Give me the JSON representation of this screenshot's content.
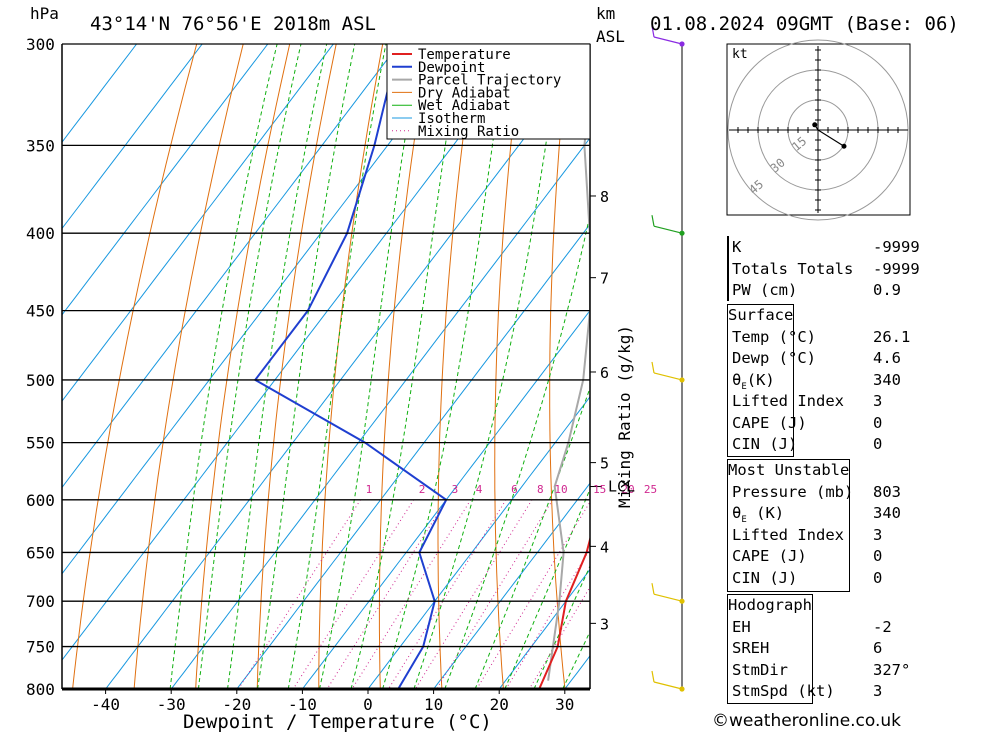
{
  "header": {
    "location": "43°14'N 76°56'E 2018m ASL",
    "datetime": "01.08.2024 09GMT (Base: 06)",
    "hpa_unit": "hPa",
    "km_unit": "km",
    "asl_unit": "ASL"
  },
  "chart_data": {
    "type": "line",
    "title": "43°14'N 76°56'E 2018m ASL",
    "xlabel": "Dewpoint / Temperature (°C)",
    "ylabel": "hPa",
    "right_axis_label": "Mixing Ratio (g/kg)",
    "xlim": [
      -47,
      34
    ],
    "ylim": [
      800,
      300
    ],
    "x_ticks": [
      -40,
      -30,
      -20,
      -10,
      0,
      10,
      20,
      30
    ],
    "pressure_levels": [
      300,
      350,
      400,
      450,
      500,
      550,
      600,
      650,
      700,
      750,
      800
    ],
    "km_ticks": [
      {
        "label": "8",
        "p": 378
      },
      {
        "label": "7",
        "p": 428
      },
      {
        "label": "6",
        "p": 494
      },
      {
        "label": "5",
        "p": 567
      },
      {
        "label": "4",
        "p": 644
      },
      {
        "label": "3",
        "p": 724
      }
    ],
    "lcl": {
      "label": "LCL",
      "p": 588
    },
    "mixing_ratio_labels": [
      "1",
      "2",
      "3",
      "4",
      "6",
      "8",
      "10",
      "15",
      "20",
      "25"
    ],
    "mixing_ratio_values": [
      1,
      2,
      3,
      4,
      6,
      8,
      10,
      15,
      20,
      25
    ],
    "legend": [
      "Temperature",
      "Dewpoint",
      "Parcel Trajectory",
      "Dry Adiabat",
      "Wet Adiabat",
      "Isotherm",
      "Mixing Ratio"
    ],
    "legend_position": "top-center",
    "colors": {
      "temperature": "#e02020",
      "dewpoint": "#1f3fd0",
      "parcel": "#a8a8a8",
      "dry_adiabat": "#e07010",
      "wet_adiabat": "#10b010",
      "isotherm": "#1898e0",
      "mixing_ratio": "#d02890"
    },
    "series": [
      {
        "name": "Temperature",
        "points": [
          [
            26.1,
            800
          ],
          [
            24,
            750
          ],
          [
            20,
            700
          ],
          [
            17.5,
            650
          ],
          [
            13.5,
            600
          ],
          [
            10.5,
            550
          ],
          [
            7,
            500
          ],
          [
            4,
            450
          ],
          [
            0.5,
            400
          ],
          [
            -2,
            380
          ],
          [
            -3,
            350
          ]
        ]
      },
      {
        "name": "Dewpoint",
        "points": [
          [
            4.6,
            800
          ],
          [
            3.5,
            750
          ],
          [
            0,
            700
          ],
          [
            -8,
            650
          ],
          [
            -10,
            600
          ],
          [
            -29,
            550
          ],
          [
            -53,
            500
          ],
          [
            -53,
            450
          ],
          [
            -56,
            400
          ],
          [
            -62,
            350
          ],
          [
            -70,
            300
          ]
        ]
      },
      {
        "name": "Parcel Trajectory",
        "points": [
          [
            26.5,
            790
          ],
          [
            19,
            700
          ],
          [
            14,
            650
          ],
          [
            5,
            588
          ],
          [
            2,
            550
          ],
          [
            -3,
            500
          ],
          [
            -10,
            450
          ],
          [
            -19,
            400
          ],
          [
            -30,
            350
          ],
          [
            -38,
            310
          ]
        ]
      }
    ],
    "wind_barbs": [
      {
        "p": 300,
        "color": "#8a2be2"
      },
      {
        "p": 400,
        "color": "#20a020"
      },
      {
        "p": 500,
        "color": "#e0c000"
      },
      {
        "p": 700,
        "color": "#e0c000"
      },
      {
        "p": 800,
        "color": "#e0c000"
      }
    ]
  },
  "hodograph": {
    "unit": "kt",
    "ring_labels": [
      "15",
      "30",
      "45"
    ],
    "points": [
      [
        -0.5,
        0.8
      ],
      [
        0,
        0
      ],
      [
        4,
        -2.5
      ]
    ]
  },
  "indices": {
    "k_label": "K",
    "k_value": "-9999",
    "tt_label": "Totals Totals",
    "tt_value": "-9999",
    "pw_label": "PW (cm)",
    "pw_value": "0.9"
  },
  "surface": {
    "title": "Surface",
    "temp_label": "Temp (°C)",
    "temp_value": "26.1",
    "dewp_label": "Dewp (°C)",
    "dewp_value": "4.6",
    "theta_label": "(K)",
    "theta_value": "340",
    "li_label": "Lifted Index",
    "li_value": "3",
    "cape_label": "CAPE (J)",
    "cape_value": "0",
    "cin_label": "CIN (J)",
    "cin_value": "0"
  },
  "most_unstable": {
    "title": "Most Unstable",
    "pressure_label": "Pressure (mb)",
    "pressure_value": "803",
    "theta_label": "(K)",
    "theta_value": "340",
    "li_label": "Lifted Index",
    "li_value": "3",
    "cape_label": "CAPE (J)",
    "cape_value": "0",
    "cin_label": "CIN (J)",
    "cin_value": "0"
  },
  "hodograph_table": {
    "title": "Hodograph",
    "eh_label": "EH",
    "eh_value": "-2",
    "sreh_label": "SREH",
    "sreh_value": "6",
    "stmdir_label": "StmDir",
    "stmdir_value": "327°",
    "stmspd_label": "StmSpd (kt)",
    "stmspd_value": "3"
  },
  "footer": {
    "credit": "©weatheronline.co.uk"
  }
}
